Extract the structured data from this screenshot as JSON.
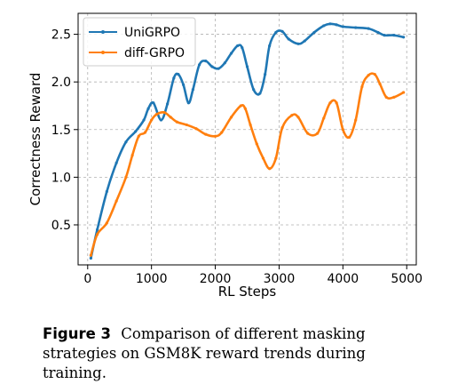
{
  "chart_data": {
    "type": "line",
    "xlabel": "RL Steps",
    "ylabel": "Correctness Reward",
    "xlim": [
      -150,
      5150
    ],
    "ylim": [
      0.08,
      2.72
    ],
    "xticks": [
      0,
      1000,
      2000,
      3000,
      4000,
      5000
    ],
    "yticks": [
      0.5,
      1.0,
      1.5,
      2.0,
      2.5
    ],
    "xtick_labels": [
      "0",
      "1000",
      "2000",
      "3000",
      "4000",
      "5000"
    ],
    "ytick_labels": [
      "0.5",
      "1.0",
      "1.5",
      "2.0",
      "2.5"
    ],
    "grid": true,
    "legend_position": "top-left",
    "series": [
      {
        "name": "UniGRPO",
        "color": "#1f77b4",
        "x": [
          50,
          150,
          300,
          450,
          600,
          750,
          880,
          950,
          1030,
          1150,
          1250,
          1350,
          1420,
          1500,
          1580,
          1650,
          1750,
          1850,
          1950,
          2050,
          2150,
          2250,
          2350,
          2420,
          2500,
          2600,
          2700,
          2780,
          2850,
          2950,
          3050,
          3150,
          3300,
          3400,
          3550,
          3700,
          3800,
          3900,
          4000,
          4200,
          4400,
          4550,
          4650,
          4800,
          4950
        ],
        "y": [
          0.15,
          0.45,
          0.85,
          1.15,
          1.37,
          1.48,
          1.6,
          1.72,
          1.78,
          1.6,
          1.77,
          2.04,
          2.08,
          1.97,
          1.78,
          1.92,
          2.18,
          2.22,
          2.16,
          2.14,
          2.2,
          2.3,
          2.38,
          2.36,
          2.16,
          1.92,
          1.88,
          2.08,
          2.38,
          2.52,
          2.53,
          2.45,
          2.4,
          2.43,
          2.52,
          2.59,
          2.61,
          2.6,
          2.58,
          2.57,
          2.56,
          2.52,
          2.49,
          2.49,
          2.47
        ]
      },
      {
        "name": "diff-GRPO",
        "color": "#ff7f0e",
        "x": [
          50,
          150,
          300,
          450,
          600,
          700,
          800,
          900,
          1000,
          1080,
          1200,
          1300,
          1400,
          1550,
          1700,
          1850,
          2000,
          2100,
          2250,
          2400,
          2470,
          2550,
          2650,
          2750,
          2850,
          2950,
          3050,
          3200,
          3300,
          3450,
          3600,
          3700,
          3800,
          3900,
          4000,
          4100,
          4200,
          4300,
          4400,
          4500,
          4580,
          4680,
          4800,
          4950
        ],
        "y": [
          0.18,
          0.4,
          0.52,
          0.75,
          1.0,
          1.23,
          1.43,
          1.47,
          1.6,
          1.66,
          1.68,
          1.63,
          1.58,
          1.55,
          1.51,
          1.45,
          1.43,
          1.47,
          1.63,
          1.75,
          1.72,
          1.55,
          1.35,
          1.2,
          1.09,
          1.2,
          1.52,
          1.65,
          1.63,
          1.46,
          1.46,
          1.62,
          1.78,
          1.78,
          1.5,
          1.42,
          1.6,
          1.95,
          2.07,
          2.08,
          1.98,
          1.84,
          1.84,
          1.89
        ]
      }
    ]
  },
  "caption": {
    "label": "Figure 3",
    "text": "Comparison of different masking strategies on GSM8K reward trends during training."
  }
}
